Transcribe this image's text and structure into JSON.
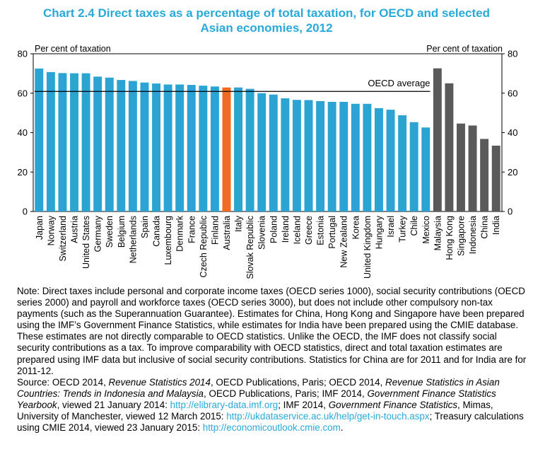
{
  "title_lines": [
    "Chart 2.4 Direct taxes as a percentage of total taxation, for OECD and selected",
    "Asian economies, 2012"
  ],
  "chart_data": {
    "type": "bar",
    "title": "Chart 2.4 Direct taxes as a percentage of total taxation, for OECD and selected Asian economies, 2012",
    "ylabel_left": "Per cent of taxation",
    "ylabel_right": "Per cent of taxation",
    "ylim": [
      0,
      80
    ],
    "yticks": [
      0,
      20,
      40,
      60,
      80
    ],
    "grid": false,
    "categories": [
      "Japan",
      "Norway",
      "Switzerland",
      "Austria",
      "United States",
      "Germany",
      "Sweden",
      "Belgium",
      "Netherlands",
      "Spain",
      "Canada",
      "Luxembourg",
      "Denmark",
      "France",
      "Czech Republic",
      "Finland",
      "Australia",
      "Italy",
      "Slovak Republic",
      "Slovenia",
      "Poland",
      "Ireland",
      "Iceland",
      "Greece",
      "Estonia",
      "Portugal",
      "New Zealand",
      "Korea",
      "United Kingdom",
      "Hungary",
      "Israel",
      "Turkey",
      "Chile",
      "Mexico",
      "Malaysia",
      "Hong Kong",
      "Singapore",
      "Indonesia",
      "China",
      "India"
    ],
    "values": [
      72.5,
      70.7,
      70.2,
      70.1,
      70.1,
      68.4,
      67.9,
      66.7,
      66.2,
      65.4,
      64.9,
      64.4,
      64.4,
      64.2,
      63.8,
      63.4,
      62.9,
      62.9,
      62.2,
      60.0,
      59.3,
      57.4,
      56.6,
      56.5,
      56.0,
      55.6,
      55.6,
      54.6,
      54.6,
      52.4,
      51.6,
      48.8,
      45.3,
      42.6,
      72.6,
      65.0,
      44.6,
      43.6,
      36.8,
      33.4
    ],
    "groups": [
      "oecd",
      "oecd",
      "oecd",
      "oecd",
      "oecd",
      "oecd",
      "oecd",
      "oecd",
      "oecd",
      "oecd",
      "oecd",
      "oecd",
      "oecd",
      "oecd",
      "oecd",
      "oecd",
      "australia",
      "oecd",
      "oecd",
      "oecd",
      "oecd",
      "oecd",
      "oecd",
      "oecd",
      "oecd",
      "oecd",
      "oecd",
      "oecd",
      "oecd",
      "oecd",
      "oecd",
      "oecd",
      "oecd",
      "oecd",
      "asia",
      "asia",
      "asia",
      "asia",
      "asia",
      "asia"
    ],
    "colors": {
      "oecd": "#2ba4d4",
      "australia": "#f26a21",
      "asia": "#5a5a5a",
      "title": "#29a9d9",
      "link": "#29a9d9"
    },
    "oecd_average": {
      "label": "OECD average",
      "value": 60.9,
      "from_category": "Japan",
      "to_category": "Mexico"
    }
  },
  "notes": {
    "note": "Note:  Direct taxes include personal and corporate income taxes (OECD series 1000), social security contributions (OECD series 2000) and payroll and workforce taxes (OECD series 3000), but does not include other compulsory non-tax payments (such as the Superannuation Guarantee). Estimates for China, Hong Kong and Singapore have been prepared using the IMF’s Government Finance Statistics, while estimates for India have been prepared using the CMIE database. These estimates are not directly comparable to OECD statistics. Unlike the OECD, the IMF does not classify social security contributions as a tax. To improve comparability with OECD statistics, direct and total taxation estimates are prepared using IMF data but inclusive of social security contributions. Statistics for China are for 2011 and for India are for 2011-12.",
    "source_prefix": "Source: OECD 2014, ",
    "source_t1": "Revenue Statistics 2014",
    "source_s1": ", OECD Publications, Paris; OECD 2014, ",
    "source_t2": "Revenue Statistics in Asian Countries: Trends in Indonesia and Malaysia",
    "source_s2": ", OECD Publications, Paris; IMF 2014, ",
    "source_t3": "Government Finance Statistics Yearbook",
    "source_s3": ", viewed 21 January 2014: ",
    "link1": "http://elibrary-data.imf.org",
    "source_s4": "; IMF 2014, ",
    "source_t4": "Government Finance Statistics",
    "source_s5": ", Mimas, University of Manchester, viewed 12 March 2015: ",
    "link2": "http://ukdataservice.ac.uk/help/get-in-touch.aspx",
    "source_s6": "; Treasury calculations using CMIE 2014, viewed 23 January 2015: ",
    "link3": "http://economicoutlook.cmie.com",
    "source_end": "."
  }
}
